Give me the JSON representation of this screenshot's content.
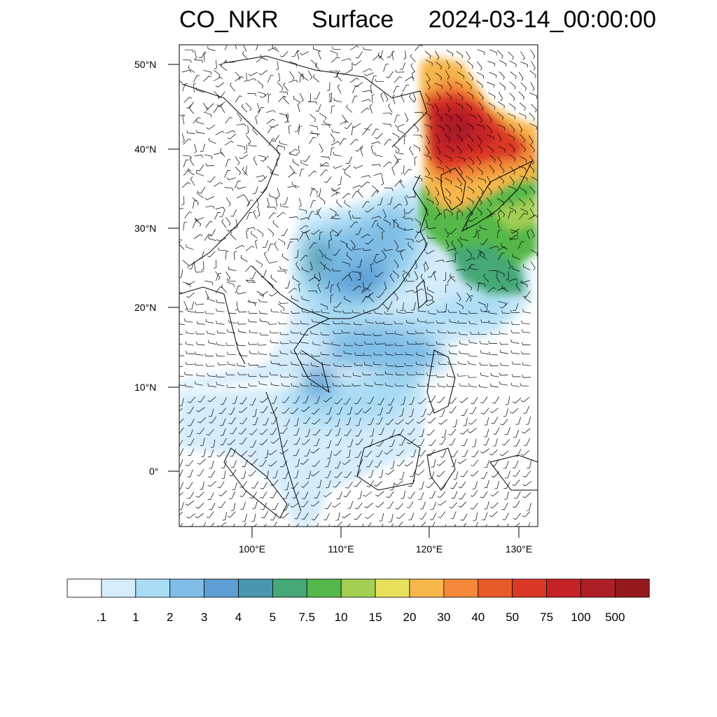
{
  "title": {
    "variable": "CO_NKR",
    "level": "Surface",
    "datetime": "2024-03-14_00:00:00"
  },
  "map": {
    "lat_ticks": [
      "50°N",
      "40°N",
      "30°N",
      "20°N",
      "10°N",
      "0°"
    ],
    "lon_ticks": [
      "100°E",
      "110°E",
      "120°E",
      "130°E"
    ],
    "coastline_color": "#000000",
    "wind_barb_color": "#000000"
  },
  "colorbar": {
    "labels": [
      ".1",
      "1",
      "2",
      "3",
      "4",
      "5",
      "7.5",
      "10",
      "15",
      "20",
      "30",
      "40",
      "50",
      "75",
      "100",
      "500"
    ],
    "colors": [
      "#ffffff",
      "#d5ecfa",
      "#a9dcf4",
      "#7fbde6",
      "#5d9fd4",
      "#4a96ae",
      "#45a876",
      "#55b84a",
      "#a3cf52",
      "#e7e05c",
      "#f5b64c",
      "#f28838",
      "#e95a2a",
      "#dc3828",
      "#c52228",
      "#ae1e26",
      "#941a1e"
    ]
  }
}
